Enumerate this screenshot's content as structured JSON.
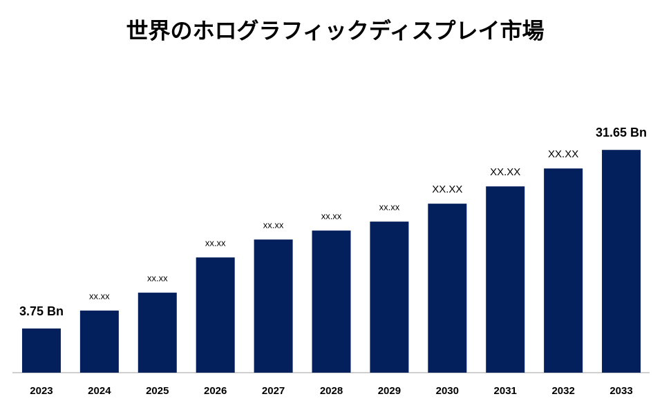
{
  "chart_data": {
    "type": "bar",
    "title": "世界のホログラフィックディスプレイ市場",
    "categories": [
      "2023",
      "2024",
      "2025",
      "2026",
      "2027",
      "2028",
      "2029",
      "2030",
      "2031",
      "2032",
      "2033"
    ],
    "values": [
      3.75,
      6.55,
      9.35,
      14.85,
      17.65,
      19.05,
      20.45,
      23.25,
      25.95,
      28.75,
      31.65
    ],
    "value_labels": [
      "3.75 Bn",
      "xx.xx",
      "xx.xx",
      "xx.xx",
      "xx.xx",
      "xx.xx",
      "xx.xx",
      "XX.XX",
      "XX.XX",
      "XX.XX",
      "31.65 Bn"
    ],
    "color": "#03205c",
    "ylim": [
      -3.15,
      48.6
    ]
  }
}
